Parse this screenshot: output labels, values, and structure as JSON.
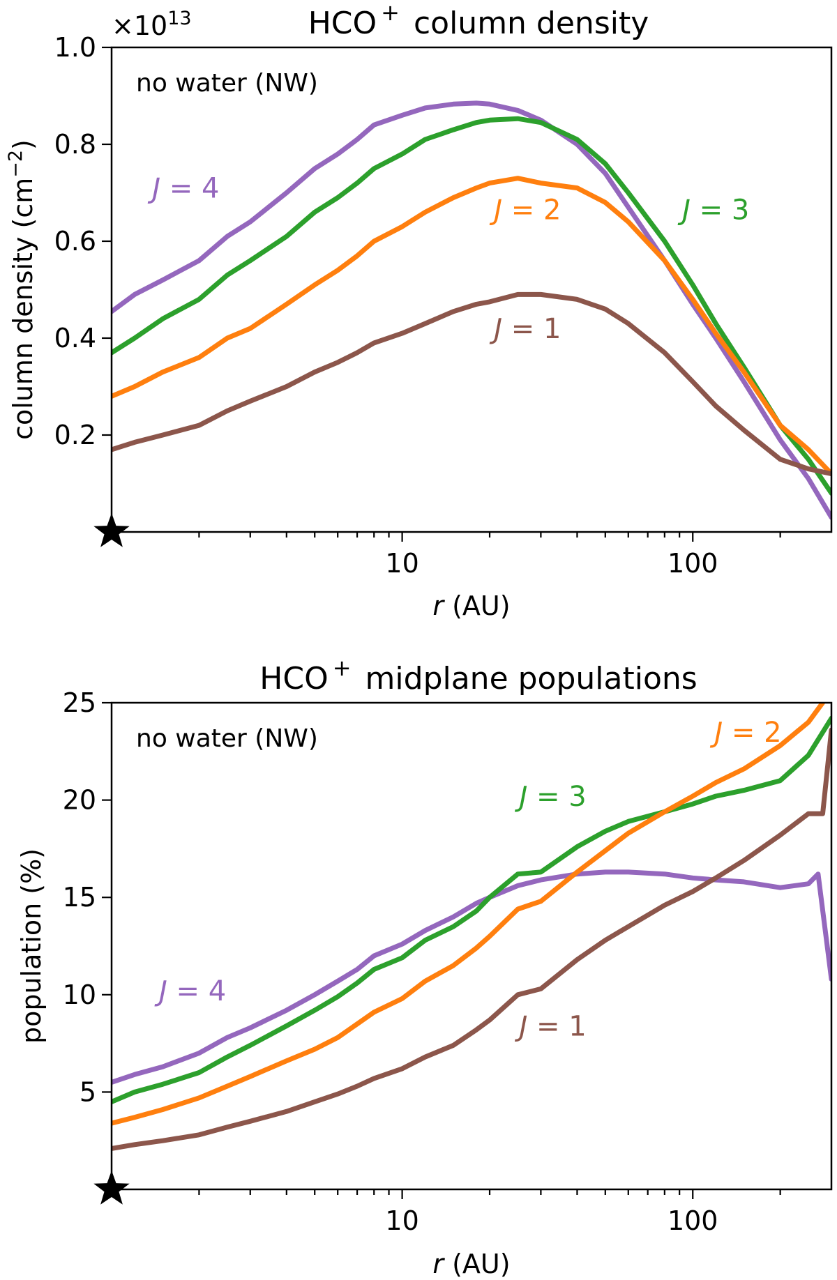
{
  "colors": {
    "J1": "#8c564b",
    "J2": "#ff7f0e",
    "J3": "#2ca02c",
    "J4": "#9467bd",
    "star": "#000000"
  },
  "chart_data": [
    {
      "type": "line",
      "title": "HCO⁺ column density",
      "title_main": "HCO",
      "title_sup": "+",
      "title_rest": " column density",
      "annotation": "no water (NW)",
      "xlabel_var": "r",
      "xlabel_unit": " (AU)",
      "ylabel": "column density (cm⁻²)",
      "ylabel_main": "column density (cm",
      "ylabel_sup": "−2",
      "ylabel_end": ")",
      "offset_prefix": "×10",
      "offset_exp": "13",
      "xscale": "log",
      "xlim": [
        1,
        300
      ],
      "ylim": [
        0,
        1.0
      ],
      "xticks": [
        10,
        100
      ],
      "xtick_labels": [
        "10",
        "100"
      ],
      "yticks": [
        0.2,
        0.4,
        0.6,
        0.8,
        1.0
      ],
      "ytick_labels": [
        "0.2",
        "0.4",
        "0.6",
        "0.8",
        "1.0"
      ],
      "marker": "star",
      "series": [
        {
          "name": "J = 4",
          "label_var": "J",
          "label_rest": " = 4",
          "color_key": "J4",
          "x": [
            1,
            1.2,
            1.5,
            2,
            2.5,
            3,
            4,
            5,
            6,
            7,
            8,
            10,
            12,
            15,
            18,
            20,
            25,
            30,
            40,
            50,
            60,
            80,
            100,
            120,
            150,
            200,
            250,
            300
          ],
          "y": [
            0.455,
            0.49,
            0.52,
            0.56,
            0.61,
            0.64,
            0.7,
            0.75,
            0.78,
            0.81,
            0.84,
            0.86,
            0.875,
            0.883,
            0.885,
            0.883,
            0.87,
            0.85,
            0.8,
            0.74,
            0.67,
            0.56,
            0.47,
            0.4,
            0.31,
            0.19,
            0.11,
            0.03
          ]
        },
        {
          "name": "J = 3",
          "label_var": "J",
          "label_rest": " = 3",
          "color_key": "J3",
          "x": [
            1,
            1.2,
            1.5,
            2,
            2.5,
            3,
            4,
            5,
            6,
            7,
            8,
            10,
            12,
            15,
            18,
            20,
            25,
            30,
            40,
            50,
            60,
            80,
            100,
            120,
            150,
            200,
            250,
            300
          ],
          "y": [
            0.37,
            0.4,
            0.44,
            0.48,
            0.53,
            0.56,
            0.61,
            0.66,
            0.69,
            0.72,
            0.75,
            0.78,
            0.81,
            0.83,
            0.845,
            0.85,
            0.853,
            0.845,
            0.81,
            0.76,
            0.7,
            0.6,
            0.51,
            0.43,
            0.34,
            0.22,
            0.15,
            0.08
          ]
        },
        {
          "name": "J = 2",
          "label_var": "J",
          "label_rest": " = 2",
          "color_key": "J2",
          "x": [
            1,
            1.2,
            1.5,
            2,
            2.5,
            3,
            4,
            5,
            6,
            7,
            8,
            10,
            12,
            15,
            18,
            20,
            25,
            30,
            40,
            50,
            60,
            80,
            100,
            120,
            150,
            200,
            250,
            300
          ],
          "y": [
            0.28,
            0.3,
            0.33,
            0.36,
            0.4,
            0.42,
            0.47,
            0.51,
            0.54,
            0.57,
            0.6,
            0.63,
            0.66,
            0.69,
            0.71,
            0.72,
            0.73,
            0.72,
            0.71,
            0.68,
            0.64,
            0.56,
            0.48,
            0.41,
            0.33,
            0.22,
            0.17,
            0.12
          ]
        },
        {
          "name": "J = 1",
          "label_var": "J",
          "label_rest": " = 1",
          "color_key": "J1",
          "x": [
            1,
            1.2,
            1.5,
            2,
            2.5,
            3,
            4,
            5,
            6,
            7,
            8,
            10,
            12,
            15,
            18,
            20,
            25,
            30,
            40,
            50,
            60,
            80,
            100,
            120,
            150,
            200,
            250,
            300
          ],
          "y": [
            0.17,
            0.185,
            0.2,
            0.22,
            0.25,
            0.27,
            0.3,
            0.33,
            0.35,
            0.37,
            0.39,
            0.41,
            0.43,
            0.455,
            0.47,
            0.475,
            0.49,
            0.49,
            0.48,
            0.46,
            0.43,
            0.37,
            0.31,
            0.26,
            0.21,
            0.15,
            0.13,
            0.12
          ]
        }
      ],
      "series_labels_at": [
        {
          "key": "J4",
          "x": 1.8,
          "y": 0.69
        },
        {
          "key": "J3",
          "x": 120,
          "y": 0.645
        },
        {
          "key": "J2",
          "x": 27,
          "y": 0.645
        },
        {
          "key": "J1",
          "x": 27,
          "y": 0.4
        }
      ]
    },
    {
      "type": "line",
      "title": "HCO⁺ midplane populations",
      "title_main": "HCO",
      "title_sup": "+",
      "title_rest": " midplane populations",
      "annotation": "no water (NW)",
      "xlabel_var": "r",
      "xlabel_unit": " (AU)",
      "ylabel": "population (%)",
      "xscale": "log",
      "xlim": [
        1,
        300
      ],
      "ylim": [
        0,
        25
      ],
      "xticks": [
        10,
        100
      ],
      "xtick_labels": [
        "10",
        "100"
      ],
      "yticks": [
        5,
        10,
        15,
        20,
        25
      ],
      "ytick_labels": [
        "5",
        "10",
        "15",
        "20",
        "25"
      ],
      "marker": "star",
      "series": [
        {
          "name": "J = 4",
          "label_var": "J",
          "label_rest": " = 4",
          "color_key": "J4",
          "x": [
            1,
            1.2,
            1.5,
            2,
            2.5,
            3,
            4,
            5,
            6,
            7,
            8,
            10,
            12,
            15,
            18,
            20,
            25,
            30,
            40,
            50,
            60,
            80,
            100,
            120,
            150,
            200,
            250,
            270,
            300
          ],
          "y": [
            5.5,
            5.9,
            6.3,
            7.0,
            7.8,
            8.3,
            9.2,
            10.0,
            10.7,
            11.3,
            12.0,
            12.6,
            13.3,
            14.0,
            14.7,
            15.0,
            15.6,
            15.9,
            16.2,
            16.3,
            16.3,
            16.2,
            16.0,
            15.9,
            15.8,
            15.5,
            15.7,
            16.2,
            10.8
          ]
        },
        {
          "name": "J = 3",
          "label_var": "J",
          "label_rest": " = 3",
          "color_key": "J3",
          "x": [
            1,
            1.2,
            1.5,
            2,
            2.5,
            3,
            4,
            5,
            6,
            7,
            8,
            10,
            12,
            15,
            18,
            20,
            25,
            30,
            40,
            50,
            60,
            80,
            100,
            120,
            150,
            200,
            250,
            300
          ],
          "y": [
            4.5,
            5.0,
            5.4,
            6.0,
            6.8,
            7.4,
            8.4,
            9.2,
            9.9,
            10.6,
            11.3,
            11.9,
            12.8,
            13.5,
            14.3,
            15.0,
            16.2,
            16.3,
            17.6,
            18.4,
            18.9,
            19.4,
            19.8,
            20.2,
            20.5,
            21.0,
            22.3,
            24.2
          ]
        },
        {
          "name": "J = 2",
          "label_var": "J",
          "label_rest": " = 2",
          "color_key": "J2",
          "x": [
            1,
            1.2,
            1.5,
            2,
            2.5,
            3,
            4,
            5,
            6,
            7,
            8,
            10,
            12,
            15,
            18,
            20,
            25,
            30,
            40,
            50,
            60,
            80,
            100,
            120,
            150,
            200,
            250,
            280
          ],
          "y": [
            3.4,
            3.7,
            4.1,
            4.7,
            5.3,
            5.8,
            6.6,
            7.2,
            7.8,
            8.5,
            9.1,
            9.8,
            10.7,
            11.5,
            12.4,
            13.0,
            14.4,
            14.8,
            16.3,
            17.4,
            18.3,
            19.4,
            20.2,
            20.9,
            21.6,
            22.8,
            24.0,
            25.0
          ]
        },
        {
          "name": "J = 1",
          "label_var": "J",
          "label_rest": " = 1",
          "color_key": "J1",
          "x": [
            1,
            1.2,
            1.5,
            2,
            2.5,
            3,
            4,
            5,
            6,
            7,
            8,
            10,
            12,
            15,
            18,
            20,
            25,
            30,
            40,
            50,
            60,
            80,
            100,
            120,
            150,
            200,
            250,
            280,
            300
          ],
          "y": [
            2.1,
            2.3,
            2.5,
            2.8,
            3.2,
            3.5,
            4.0,
            4.5,
            4.9,
            5.3,
            5.7,
            6.2,
            6.8,
            7.4,
            8.2,
            8.7,
            10.0,
            10.3,
            11.8,
            12.8,
            13.5,
            14.6,
            15.3,
            16.0,
            16.9,
            18.2,
            19.3,
            19.3,
            23.6
          ]
        }
      ],
      "series_labels_at": [
        {
          "key": "J4",
          "x": 1.9,
          "y": 9.7
        },
        {
          "key": "J3",
          "x": 33,
          "y": 19.7
        },
        {
          "key": "J2",
          "x": 155,
          "y": 23.0
        },
        {
          "key": "J1",
          "x": 33,
          "y": 7.9
        }
      ]
    }
  ]
}
